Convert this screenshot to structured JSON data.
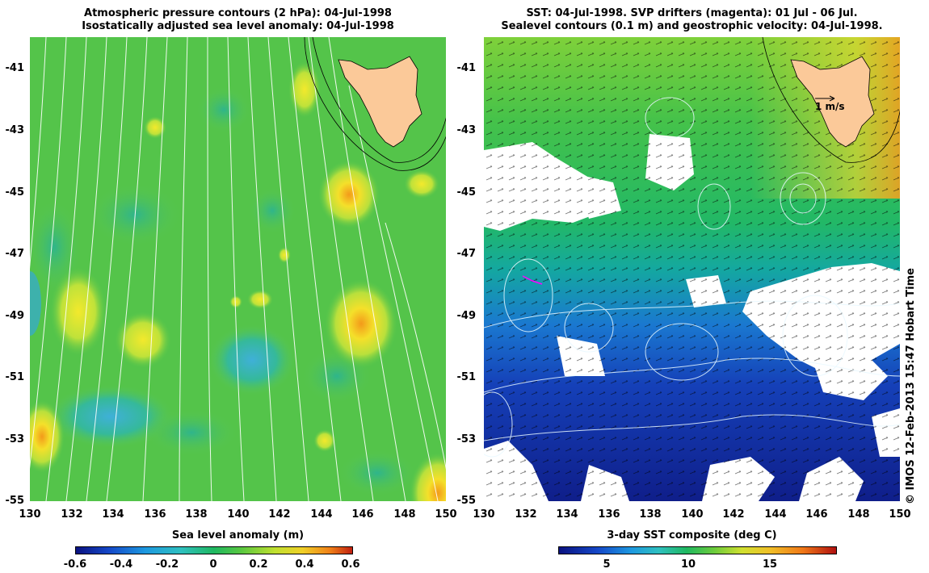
{
  "left_panel": {
    "title_line1": "Atmospheric pressure contours (2 hPa): 04-Jul-1998",
    "title_line2": "Isostatically adjusted sea level anomaly: 04-Jul-1998",
    "y_ticks": [
      "-41",
      "-43",
      "-45",
      "-47",
      "-49",
      "-51",
      "-53",
      "-55"
    ],
    "x_ticks": [
      "130",
      "132",
      "134",
      "136",
      "138",
      "140",
      "142",
      "144",
      "146",
      "148",
      "150"
    ],
    "colorbar": {
      "title": "Sea level anomaly (m)",
      "ticks": [
        "-0.6",
        "-0.4",
        "-0.2",
        "0",
        "0.2",
        "0.4",
        "0.6"
      ],
      "range": [
        -0.6,
        0.6
      ]
    }
  },
  "right_panel": {
    "title_line1": "SST: 04-Jul-1998. SVP drifters (magenta): 01 Jul - 06 Jul.",
    "title_line2": "Sealevel contours (0.1 m) and geostrophic velocity: 04-Jul-1998.",
    "y_ticks": [
      "-41",
      "-43",
      "-45",
      "-47",
      "-49",
      "-51",
      "-53",
      "-55"
    ],
    "x_ticks": [
      "130",
      "132",
      "134",
      "136",
      "138",
      "140",
      "142",
      "144",
      "146",
      "148",
      "150"
    ],
    "velocity_scale_label": "1 m/s",
    "colorbar": {
      "title": "3-day SST composite (deg C)",
      "ticks": [
        "5",
        "10",
        "15"
      ],
      "range": [
        2,
        19
      ]
    }
  },
  "map_extent": {
    "lon": [
      130,
      150
    ],
    "lat": [
      -55,
      -40
    ]
  },
  "land_color": "#fbc999",
  "credit": "© IMOS 12-Feb-2013 15:47 Hobart Time"
}
